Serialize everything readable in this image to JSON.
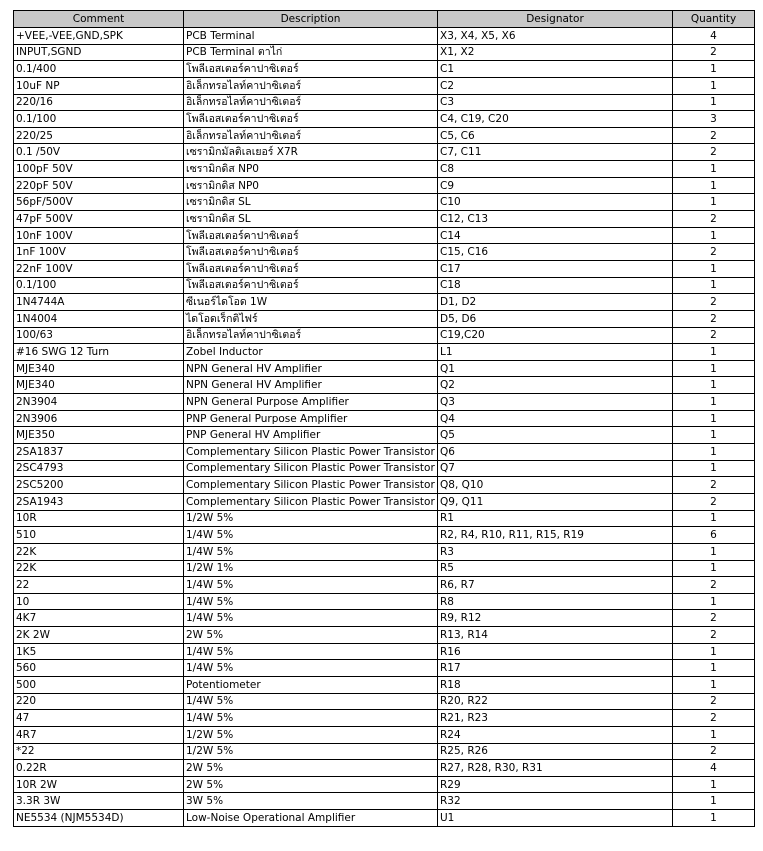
{
  "headers": [
    "Comment",
    "Description",
    "Designator",
    "Quantity"
  ],
  "rows": [
    [
      "+VEE,-VEE,GND,SPK",
      "PCB Terminal",
      "X3, X4, X5, X6",
      "4"
    ],
    [
      "INPUT,SGND",
      "PCB Terminal ตาไก่",
      "X1, X2",
      "2"
    ],
    [
      "0.1/400",
      "โพลีเอสเตอร์คาปาซิเตอร์",
      "C1",
      "1"
    ],
    [
      "10uF NP",
      "อิเล็กทรอไลท์คาปาซิเตอร์",
      "C2",
      "1"
    ],
    [
      "220/16",
      "อิเล็กทรอไลท์คาปาซิเตอร์",
      "C3",
      "1"
    ],
    [
      "0.1/100",
      "โพลีเอสเตอร์คาปาซิเตอร์",
      "C4, C19, C20",
      "3"
    ],
    [
      "220/25",
      "อิเล็กทรอไลท์คาปาซิเตอร์",
      "C5, C6",
      "2"
    ],
    [
      "0.1 /50V",
      "เซรามิกมัลติเลเยอร์ X7R",
      "C7, C11",
      "2"
    ],
    [
      "100pF 50V",
      "เซรามิกดิส NP0",
      "C8",
      "1"
    ],
    [
      "220pF 50V",
      "เซรามิกดิส NP0",
      "C9",
      "1"
    ],
    [
      "56pF/500V",
      "เซรามิกดิส SL",
      "C10",
      "1"
    ],
    [
      "47pF 500V",
      "เซรามิกดิส SL",
      "C12, C13",
      "2"
    ],
    [
      "10nF 100V",
      "โพลีเอสเตอร์คาปาซิเตอร์",
      "C14",
      "1"
    ],
    [
      "1nF 100V",
      "โพลีเอสเตอร์คาปาซิเตอร์",
      "C15, C16",
      "2"
    ],
    [
      "22nF 100V",
      "โพลีเอสเตอร์คาปาซิเตอร์",
      "C17",
      "1"
    ],
    [
      "0.1/100",
      "โพลีเอสเตอร์คาปาซิเตอร์",
      "C18",
      "1"
    ],
    [
      "1N4744A",
      "ซีเนอร์ไดโอด 1W",
      "D1, D2",
      "2"
    ],
    [
      "1N4004",
      "ไดโอดเร็กติไฟร์",
      "D5, D6",
      "2"
    ],
    [
      "100/63",
      "อิเล็กทรอไลท์คาปาซิเตอร์",
      "C19,C20",
      "2"
    ],
    [
      "#16 SWG 12 Turn",
      "Zobel Inductor",
      "L1",
      "1"
    ],
    [
      "MJE340",
      "NPN General HV Amplifier",
      "Q1",
      "1"
    ],
    [
      "MJE340",
      "NPN General HV Amplifier",
      "Q2",
      "1"
    ],
    [
      "2N3904",
      "NPN General Purpose Amplifier",
      "Q3",
      "1"
    ],
    [
      "2N3906",
      "PNP General Purpose Amplifier",
      "Q4",
      "1"
    ],
    [
      "MJE350",
      "PNP General HV Amplifier",
      "Q5",
      "1"
    ],
    [
      "2SA1837",
      "Complementary Silicon Plastic Power Transistor",
      "Q6",
      "1"
    ],
    [
      "2SC4793",
      "Complementary Silicon Plastic Power Transistor",
      "Q7",
      "1"
    ],
    [
      "2SC5200",
      "Complementary Silicon Plastic Power Transistor",
      "Q8, Q10",
      "2"
    ],
    [
      "2SA1943",
      "Complementary Silicon Plastic Power Transistor",
      "Q9, Q11",
      "2"
    ],
    [
      "10R",
      "1/2W 5%",
      "R1",
      "1"
    ],
    [
      "510",
      "1/4W 5%",
      "R2, R4, R10, R11, R15, R19",
      "6"
    ],
    [
      "22K",
      "1/4W 5%",
      "R3",
      "1"
    ],
    [
      "22K",
      "1/2W 1%",
      "R5",
      "1"
    ],
    [
      "22",
      "1/4W 5%",
      "R6, R7",
      "2"
    ],
    [
      "10",
      "1/4W 5%",
      "R8",
      "1"
    ],
    [
      "4K7",
      "1/4W 5%",
      "R9, R12",
      "2"
    ],
    [
      "2K 2W",
      "2W 5%",
      "R13, R14",
      "2"
    ],
    [
      "1K5",
      "1/4W 5%",
      "R16",
      "1"
    ],
    [
      "560",
      "1/4W 5%",
      "R17",
      "1"
    ],
    [
      "500",
      "Potentiometer",
      "R18",
      "1"
    ],
    [
      "220",
      "1/4W 5%",
      "R20, R22",
      "2"
    ],
    [
      "47",
      "1/4W 5%",
      "R21, R23",
      "2"
    ],
    [
      "4R7",
      "1/2W 5%",
      "R24",
      "1"
    ],
    [
      "*22",
      "1/2W 5%",
      "R25, R26",
      "2"
    ],
    [
      "0.22R",
      "2W 5%",
      "R27, R28, R30, R31",
      "4"
    ],
    [
      "10R 2W",
      "2W 5%",
      "R29",
      "1"
    ],
    [
      "3.3R 3W",
      "3W 5%",
      "R32",
      "1"
    ],
    [
      "NE5534  (NJM5534D)",
      "Low-Noise Operational Amplifier",
      "U1",
      "1"
    ]
  ]
}
